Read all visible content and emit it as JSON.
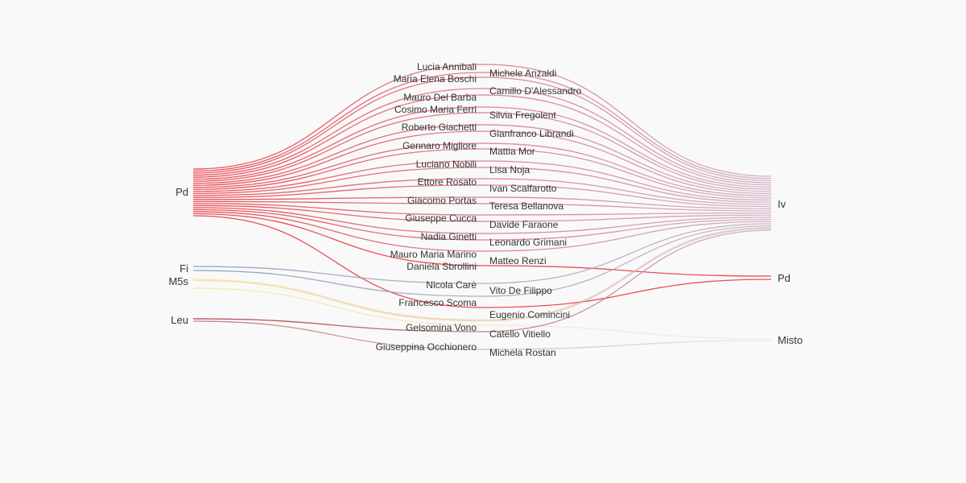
{
  "colors": {
    "Pd": "#e8232b",
    "Iv": "#c7a4ba",
    "Fi": "#7796b9",
    "M5s": "#f5d76e",
    "Leu": "#9b1b1f",
    "Misto": "#e3e3e3"
  },
  "left_nodes": [
    {
      "name": "Pd",
      "color_key": "Pd"
    },
    {
      "name": "Fi",
      "color_key": "Fi"
    },
    {
      "name": "M5s",
      "color_key": "M5s"
    },
    {
      "name": "Leu",
      "color_key": "Leu"
    }
  ],
  "right_nodes": [
    {
      "name": "Iv",
      "color_key": "Iv"
    },
    {
      "name": "Pd",
      "color_key": "Pd"
    },
    {
      "name": "Misto",
      "color_key": "Misto"
    }
  ],
  "left_names": [
    "Lucia Annibali",
    "Maria Elena Boschi",
    "Mauro Del Barba",
    "Cosimo Maria Ferri",
    "Roberto Giachetti",
    "Gennaro Migliore",
    "Luciano Nobili",
    "Ettore Rosato",
    "Giacomo Portas",
    "Giuseppe Cucca",
    "Nadia Ginetti",
    "Mauro Maria Marino",
    "Daniela Sbrollini",
    "Nicola Carè",
    "Francesco Scoma",
    "Gelsomina Vono",
    "Giuseppina Occhionero"
  ],
  "right_names": [
    "Michele Anzaldi",
    "Camillo D'Alessandro",
    "Silvia Fregolent",
    "Gianfranco Librandi",
    "Mattia Mor",
    "Lisa Noja",
    "Ivan Scalfarotto",
    "Teresa Bellanova",
    "Davide Faraone",
    "Leonardo Grimani",
    "Matteo Renzi",
    "Vito De Filippo",
    "Eugenio Comincini",
    "Catello Vitiello",
    "Michela Rostan"
  ],
  "flows": [
    {
      "from": "Pd",
      "to": "Iv",
      "count": 22
    },
    {
      "from": "Pd",
      "to": "Pd",
      "count": 2
    },
    {
      "from": "Fi",
      "to": "Iv",
      "count": 2
    },
    {
      "from": "M5s",
      "to": "Iv",
      "count": 1
    },
    {
      "from": "M5s",
      "to": "Misto",
      "count": 1
    },
    {
      "from": "Leu",
      "to": "Iv",
      "count": 1
    },
    {
      "from": "Leu",
      "to": "Misto",
      "count": 1
    }
  ]
}
